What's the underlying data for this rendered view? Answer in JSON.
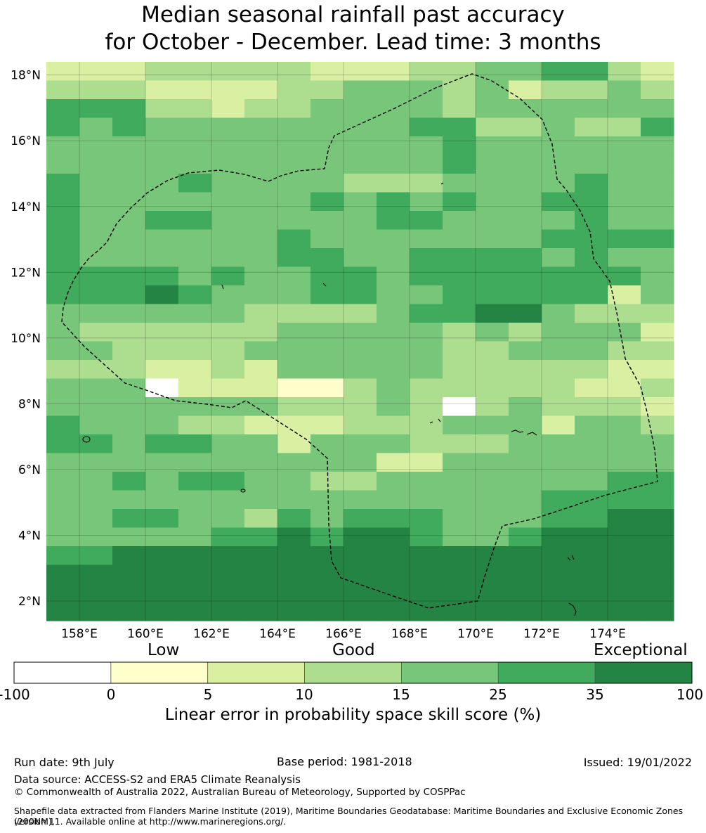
{
  "title": {
    "line1": "Median seasonal rainfall past accuracy",
    "line2": "for October - December. Lead time: 3 months"
  },
  "map": {
    "lon_labels": [
      "158°E",
      "160°E",
      "162°E",
      "164°E",
      "166°E",
      "168°E",
      "170°E",
      "172°E",
      "174°E"
    ],
    "lat_labels": [
      "18°N",
      "16°N",
      "14°N",
      "12°N",
      "10°N",
      "8°N",
      "6°N",
      "4°N",
      "2°N"
    ],
    "lon_ticks": [
      158,
      160,
      162,
      164,
      166,
      168,
      170,
      172,
      174
    ],
    "lat_ticks": [
      18,
      16,
      14,
      12,
      10,
      8,
      6,
      4,
      2
    ],
    "lon_range": [
      157.0,
      176.0
    ],
    "lat_range": [
      1.4,
      18.4
    ],
    "grid": true,
    "eez_boundary": "dashed",
    "skill_class_grid": [
      "2223333322233445532",
      "3332222334443423343",
      "5553323344443444444",
      "5454444444455334335",
      "4444444444445444444",
      "4444444444445444444",
      "5444544443334444544",
      "5444444454545445544",
      "5445544444554444544",
      "5444444544444445555",
      "5444444554455554544",
      "5555454455455555554",
      "5556544455445555524",
      "4444443333455664333",
      "4333333444443434442",
      "4433334444443344433",
      "3332232444443333322",
      "4440222113433333223",
      "4444444333430343332",
      "5444332223334442443",
      "5545544244433344444",
      "4444444444224444444",
      "4454554433444444455",
      "4444444444444445555",
      "4455443545554445566",
      "4444455656654456666",
      "5566666666666666666",
      "6666666666666666666",
      "6666666666666666666",
      "6666666666666666666"
    ]
  },
  "colorbar": {
    "top_labels": [
      "Low",
      "Good",
      "Exceptional"
    ],
    "ticks": [
      "-100",
      "0",
      "5",
      "10",
      "15",
      "25",
      "35",
      "100"
    ],
    "colors": [
      "#ffffff",
      "#ffffcc",
      "#d9f0a3",
      "#addd8e",
      "#78c679",
      "#41ab5d",
      "#238443"
    ],
    "label": "Linear error in probability space skill score (%)"
  },
  "footer": {
    "run_date": "Run date: 9th July",
    "base_period": "Base period: 1981-2018",
    "issued": "Issued: 19/01/2022",
    "data_source": "Data source: ACCESS-S2 and ERA5 Climate Reanalysis",
    "copyright": "© Commonwealth of Australia 2022, Australian Bureau of Meteorology, Supported by COSPPac",
    "shapefile_line1": "Shapefile data extracted from Flanders Marine Institute (2019), Maritime Boundaries Geodatabase: Maritime Boundaries and Exclusive Economic Zones (200NM),",
    "shapefile_line2": "version 11. Available online at http://www.marineregions.org/."
  }
}
